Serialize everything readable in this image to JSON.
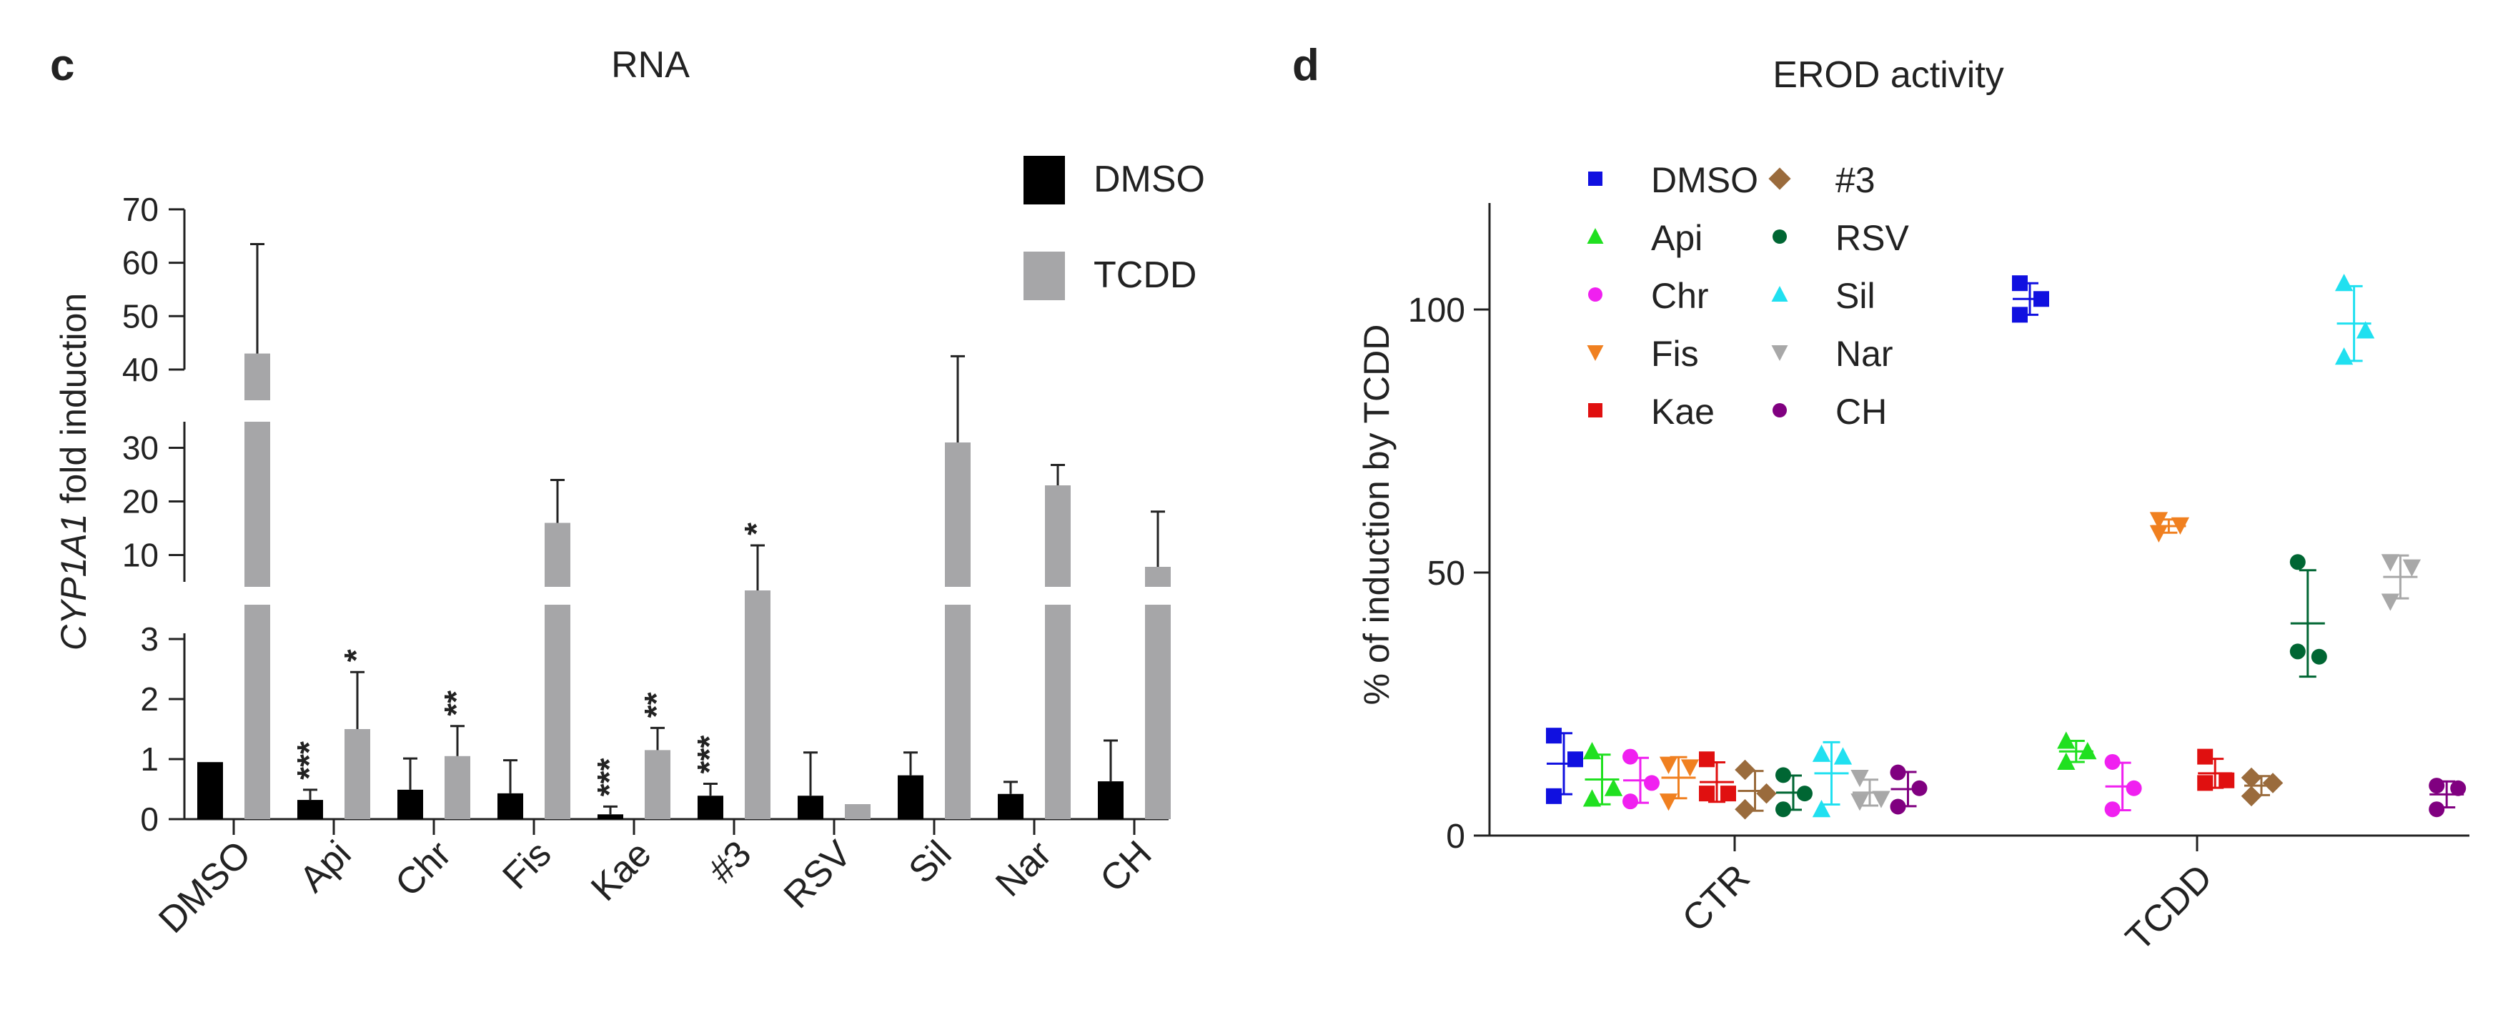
{
  "panels": {
    "c": {
      "letter": "c",
      "title": "RNA"
    },
    "d": {
      "letter": "d",
      "title": "EROD activity"
    }
  },
  "chart_data": [
    {
      "panel": "c",
      "type": "bar",
      "title": "RNA",
      "ylabel_italic": "CYP1A1",
      "ylabel_rest": " fold induction",
      "xlabel": "",
      "categories": [
        "DMSO",
        "Api",
        "Chr",
        "Fis",
        "Kae",
        "#3",
        "RSV",
        "Sil",
        "Nar",
        "CH"
      ],
      "series": [
        {
          "name": "DMSO",
          "color": "#000000",
          "values": [
            0.95,
            0.32,
            0.49,
            0.43,
            0.08,
            0.39,
            0.39,
            0.73,
            0.42,
            0.63
          ],
          "errors": [
            0,
            0.17,
            0.52,
            0.55,
            0.13,
            0.2,
            0.72,
            0.38,
            0.2,
            0.68
          ]
        },
        {
          "name": "TCDD",
          "color": "#a6a6a8",
          "values": [
            43,
            1.5,
            1.05,
            16,
            1.15,
            3.4,
            0.25,
            31,
            23,
            7.8
          ],
          "errors": [
            20.5,
            0.95,
            0.5,
            8,
            0.37,
            8.4,
            0,
            11.5,
            3.8,
            10.3
          ]
        }
      ],
      "significance": [
        {
          "category": "Api",
          "series": "DMSO",
          "label": "***"
        },
        {
          "category": "Api",
          "series": "TCDD",
          "label": "*"
        },
        {
          "category": "Chr",
          "series": "TCDD",
          "label": "**"
        },
        {
          "category": "Kae",
          "series": "DMSO",
          "label": "***"
        },
        {
          "category": "Kae",
          "series": "TCDD",
          "label": "**"
        },
        {
          "category": "#3",
          "series": "DMSO",
          "label": "***"
        },
        {
          "category": "#3",
          "series": "TCDD",
          "label": "*"
        }
      ],
      "y_axis_segments": [
        {
          "range": [
            0,
            3
          ],
          "ticks": [
            0,
            1,
            2,
            3
          ]
        },
        {
          "range": [
            5,
            35
          ],
          "ticks": [
            10,
            20,
            30
          ]
        },
        {
          "range": [
            40,
            70
          ],
          "ticks": [
            40,
            50,
            60,
            70
          ]
        }
      ],
      "legend": {
        "position": "top-right",
        "entries": [
          "DMSO",
          "TCDD"
        ]
      }
    },
    {
      "panel": "d",
      "type": "scatter",
      "title": "EROD activity",
      "ylabel": "% of induction by TCDD",
      "xlabel": "",
      "ylim": [
        0,
        120
      ],
      "yticks": [
        0,
        50,
        100
      ],
      "groups": [
        "CTR",
        "TCDD"
      ],
      "series": [
        {
          "name": "DMSO",
          "color": "#1010e0",
          "marker": "square",
          "CTR": [
            19,
            14.5,
            7.5
          ],
          "TCDD": [
            105,
            102,
            99
          ]
        },
        {
          "name": "Api",
          "color": "#20e020",
          "marker": "triangle-up",
          "CTR": [
            16,
            9,
            7
          ],
          "TCDD": [
            18,
            16,
            14
          ]
        },
        {
          "name": "Chr",
          "color": "#f020f0",
          "marker": "circle",
          "CTR": [
            15,
            10,
            6.5
          ],
          "TCDD": [
            14,
            9,
            5
          ]
        },
        {
          "name": "Fis",
          "color": "#f08020",
          "marker": "triangle-down",
          "CTR": [
            13.5,
            13,
            6.5
          ],
          "TCDD": [
            60,
            59,
            57.5
          ]
        },
        {
          "name": "Kae",
          "color": "#e01010",
          "marker": "square",
          "CTR": [
            14.5,
            8,
            8
          ],
          "TCDD": [
            15,
            10.5,
            10
          ]
        },
        {
          "name": "#3",
          "color": "#9a6b3c",
          "marker": "diamond",
          "CTR": [
            12.5,
            8,
            5
          ],
          "TCDD": [
            11,
            10,
            7.5
          ]
        },
        {
          "name": "RSV",
          "color": "#006633",
          "marker": "circle",
          "CTR": [
            11.5,
            8,
            5
          ],
          "TCDD": [
            52,
            34,
            35
          ]
        },
        {
          "name": "Sil",
          "color": "#20e0f0",
          "marker": "triangle-up",
          "CTR": [
            15.5,
            15,
            5
          ],
          "TCDD": [
            105,
            96,
            91
          ]
        },
        {
          "name": "Nar",
          "color": "#a8a8a8",
          "marker": "triangle-down",
          "CTR": [
            11,
            7,
            6.5
          ],
          "TCDD": [
            52,
            51,
            44.5
          ]
        },
        {
          "name": "CH",
          "color": "#800080",
          "marker": "circle",
          "CTR": [
            12,
            9,
            5.5
          ],
          "TCDD": [
            9.5,
            9,
            5
          ]
        }
      ],
      "legend": {
        "position": "top-left",
        "columns": 2
      }
    }
  ]
}
